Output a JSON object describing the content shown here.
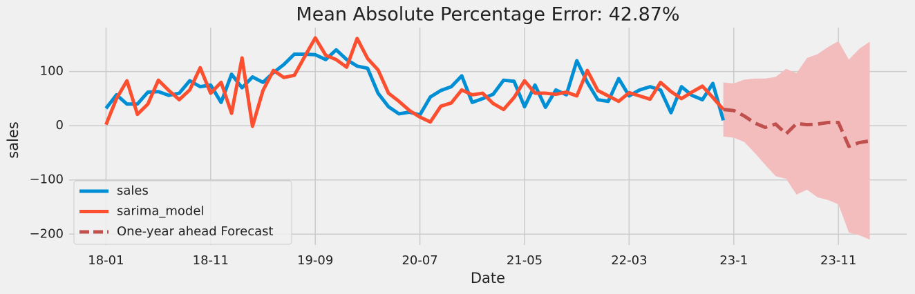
{
  "chart_data": {
    "type": "line",
    "title": "Mean Absolute Percentage Error: 42.87%",
    "x_label": "Date",
    "y_label": "sales",
    "x": [
      "18-01",
      "18-02",
      "18-03",
      "18-04",
      "18-05",
      "18-06",
      "18-07",
      "18-08",
      "18-09",
      "18-10",
      "18-11",
      "18-12",
      "19-01",
      "19-02",
      "19-03",
      "19-04",
      "19-05",
      "19-06",
      "19-07",
      "19-08",
      "19-09",
      "19-10",
      "19-11",
      "19-12",
      "20-01",
      "20-02",
      "20-03",
      "20-04",
      "20-05",
      "20-06",
      "20-07",
      "20-08",
      "20-09",
      "20-10",
      "20-11",
      "20-12",
      "21-01",
      "21-02",
      "21-03",
      "21-04",
      "21-05",
      "21-06",
      "21-07",
      "21-08",
      "21-09",
      "21-10",
      "21-11",
      "21-12",
      "22-01",
      "22-02",
      "22-03",
      "22-04",
      "22-05",
      "22-06",
      "22-07",
      "22-08",
      "22-09",
      "22-10",
      "22-11",
      "22-12"
    ],
    "series": [
      {
        "name": "sales",
        "color": "#008fd5",
        "values": [
          32,
          57,
          40,
          40,
          62,
          63,
          56,
          60,
          83,
          72,
          75,
          43,
          95,
          70,
          90,
          80,
          98,
          113,
          132,
          132,
          131,
          122,
          140,
          122,
          110,
          106,
          60,
          35,
          22,
          25,
          20,
          53,
          65,
          72,
          92,
          43,
          50,
          58,
          84,
          82,
          35,
          75,
          34,
          66,
          57,
          120,
          80,
          48,
          45,
          87,
          55,
          66,
          72,
          66,
          24,
          72,
          56,
          48,
          78,
          10
        ]
      },
      {
        "name": "sarima_model",
        "color": "#fc4f30",
        "values": [
          2,
          50,
          83,
          21,
          40,
          84,
          65,
          48,
          66,
          107,
          60,
          80,
          23,
          125,
          -1,
          65,
          102,
          89,
          93,
          128,
          162,
          130,
          122,
          108,
          161,
          124,
          103,
          60,
          45,
          28,
          16,
          7,
          36,
          42,
          66,
          57,
          60,
          41,
          30,
          52,
          83,
          60,
          60,
          58,
          62,
          55,
          102,
          65,
          55,
          45,
          61,
          55,
          49,
          80,
          63,
          50,
          62,
          73,
          52,
          30
        ]
      },
      {
        "name": "One-year ahead Forecast",
        "color": "#c0504d",
        "dashed": true,
        "x": [
          "22-12",
          "23-01",
          "23-02",
          "23-03",
          "23-04",
          "23-05",
          "23-06",
          "23-07",
          "23-08",
          "23-09",
          "23-10",
          "23-11",
          "23-12",
          "24-01",
          "24-02"
        ],
        "values": [
          30,
          28,
          18,
          5,
          -3,
          3,
          -15,
          4,
          2,
          3,
          6,
          6,
          -38,
          -31,
          -28
        ],
        "interval": {
          "color": "#f4bdbd",
          "upper": [
            80,
            78,
            85,
            87,
            87,
            90,
            105,
            97,
            125,
            132,
            145,
            156,
            122,
            142,
            155
          ],
          "lower": [
            -20,
            -22,
            -30,
            -50,
            -72,
            -93,
            -98,
            -127,
            -118,
            -132,
            -137,
            -145,
            -197,
            -202,
            -210
          ]
        }
      }
    ],
    "xlim": [
      "17-10",
      "24-05"
    ],
    "xticks": [
      "18-01",
      "18-11",
      "19-09",
      "20-07",
      "21-05",
      "22-03",
      {
        "value": "23-01",
        "label": "23-1"
      },
      "23-11"
    ],
    "ylim": [
      -220,
      181
    ],
    "yticks": [
      {
        "value": -200,
        "label": "−200"
      },
      {
        "value": -100,
        "label": "−100"
      },
      0,
      100
    ],
    "grid": true,
    "legend": "lower left"
  }
}
